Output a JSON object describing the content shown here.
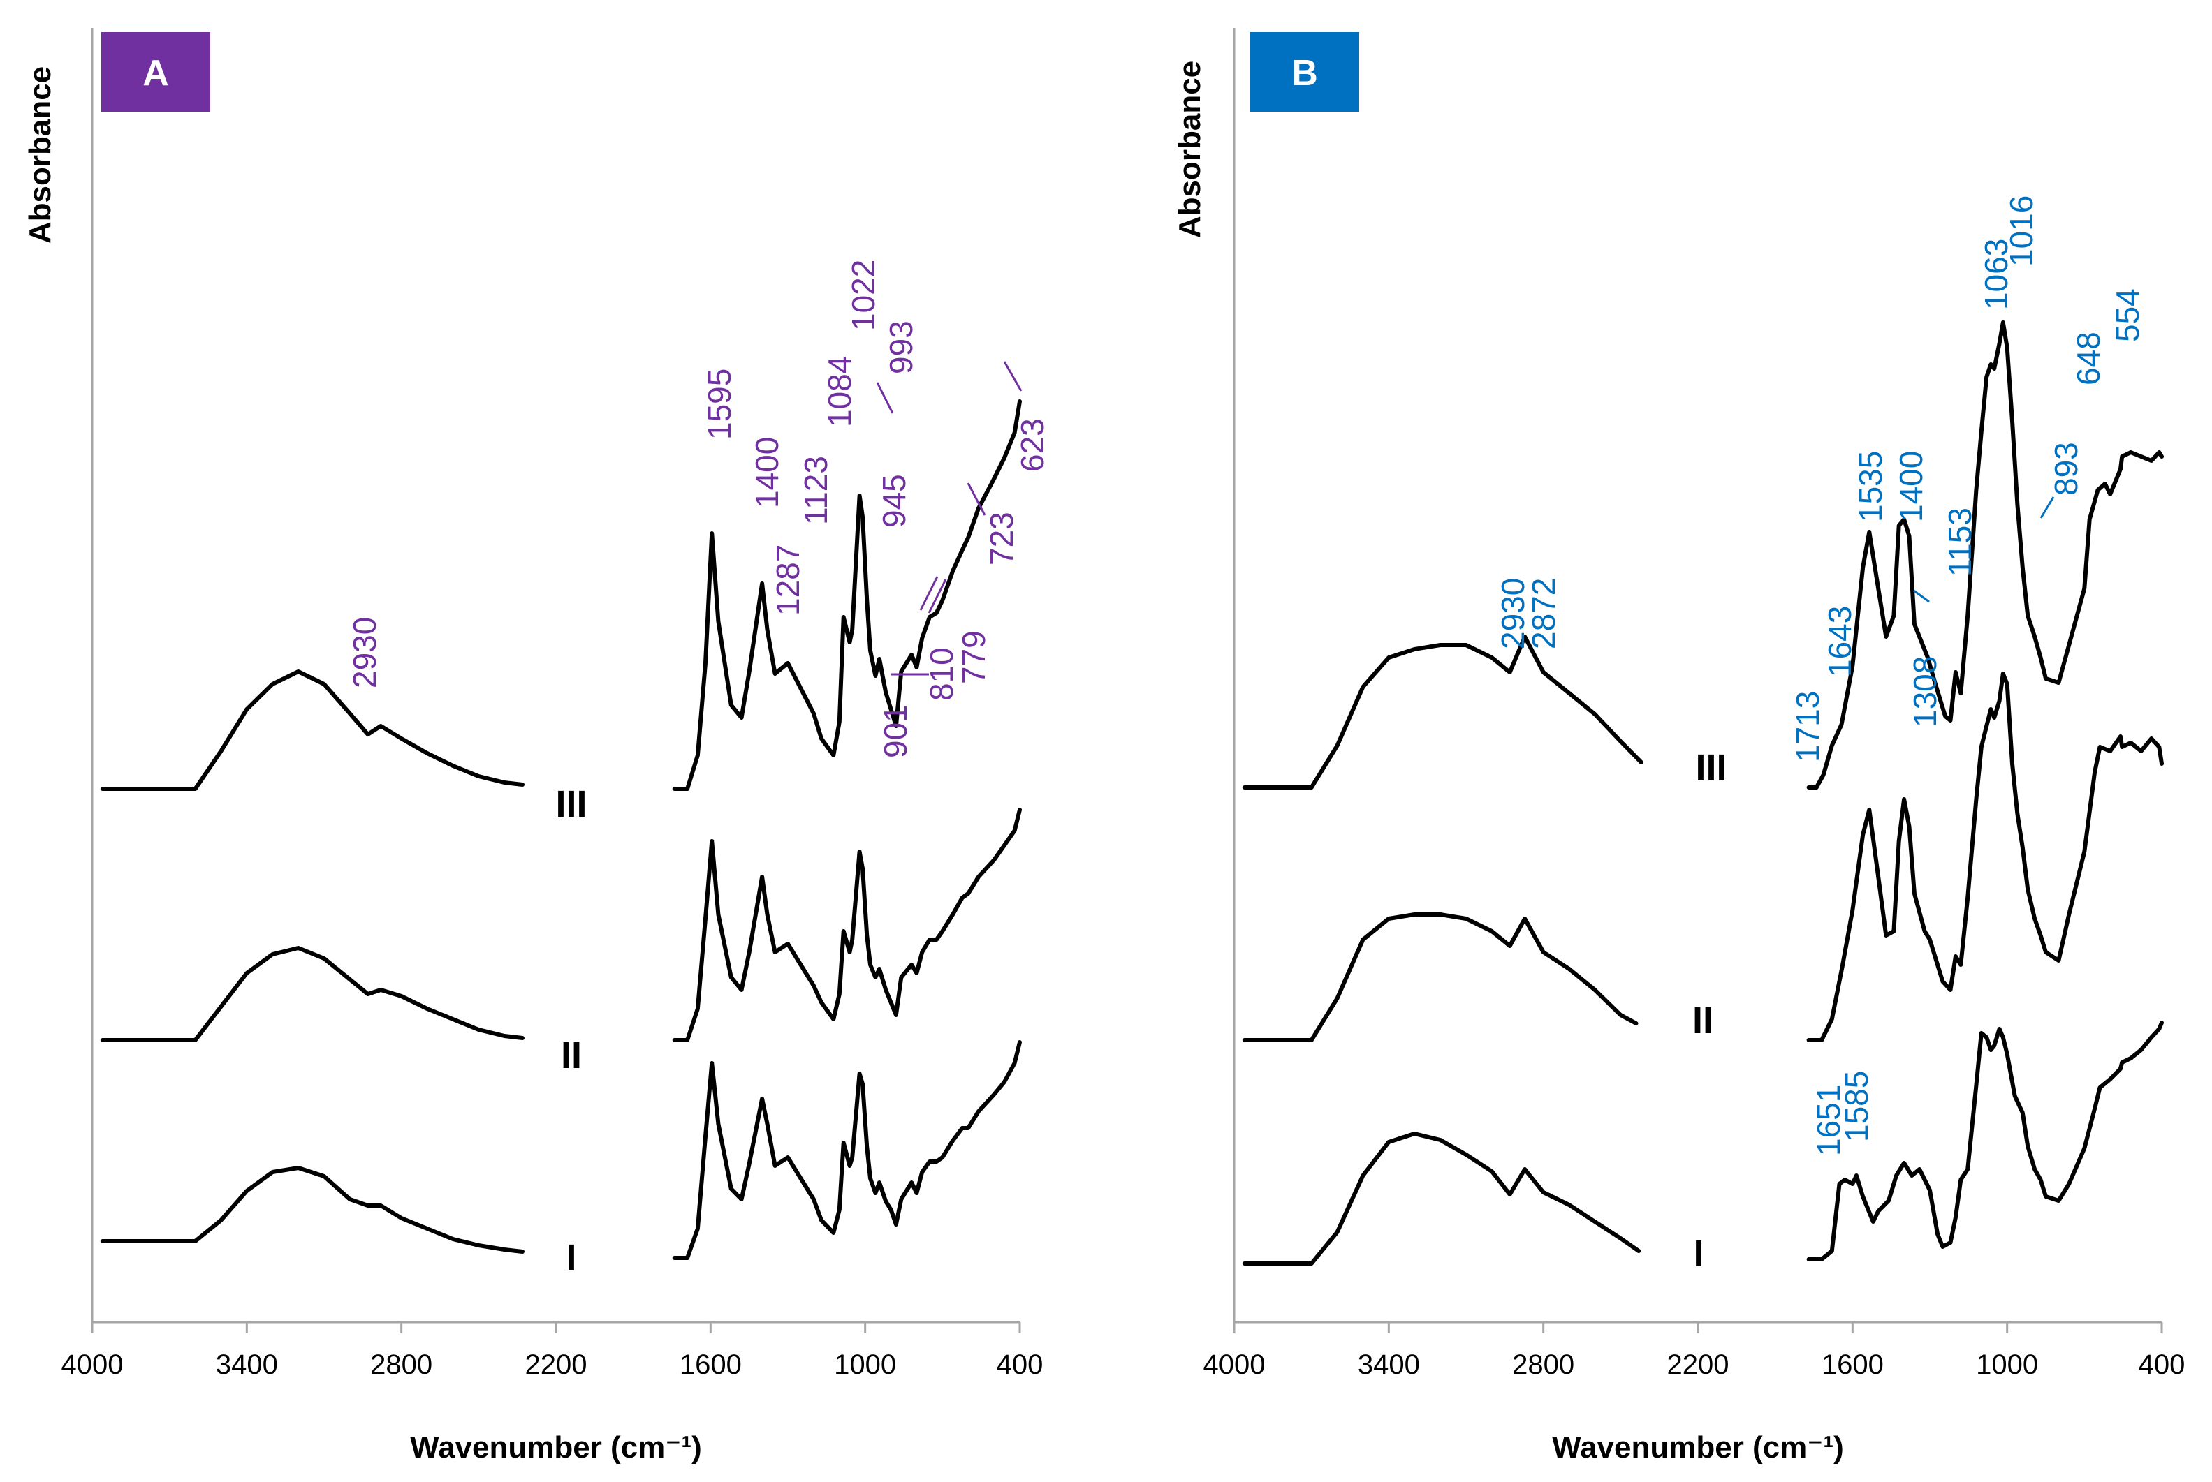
{
  "chart_data": [
    {
      "type": "line",
      "panel_label": "A",
      "accent": "#7030a0",
      "ylabel": "Absorbance",
      "xlabel": "Wavenumber (cm⁻¹)",
      "xlim": [
        4000,
        400
      ],
      "x_ticks": [
        "4000",
        "3400",
        "2800",
        "2200",
        "1600",
        "1000",
        "400"
      ],
      "x_tick_values": [
        4000,
        3400,
        2800,
        2200,
        1600,
        1000,
        400
      ],
      "axis_break": [
        2300,
        1700
      ],
      "series": [
        {
          "name": "I",
          "segments": [
            {
              "x": [
                3960,
                3600,
                3500,
                3400,
                3300,
                3200,
                3100,
                3000,
                2930,
                2880,
                2800,
                2700,
                2600,
                2500,
                2400,
                2330
              ],
              "y": [
                0.1,
                0.1,
                0.2,
                0.34,
                0.43,
                0.45,
                0.41,
                0.3,
                0.27,
                0.27,
                0.21,
                0.16,
                0.11,
                0.08,
                0.06,
                0.05
              ]
            },
            {
              "x": [
                1740,
                1690,
                1650,
                1620,
                1595,
                1570,
                1520,
                1480,
                1450,
                1400,
                1380,
                1350,
                1300,
                1250,
                1200,
                1170,
                1123,
                1100,
                1084,
                1060,
                1050,
                1022,
                1010,
                993,
                980,
                960,
                945,
                920,
                900,
                880,
                860,
                820,
                800,
                779,
                750,
                723,
                700,
                660,
                623,
                600,
                560,
                500,
                460,
                420,
                400
              ],
              "y": [
                0.02,
                0.02,
                0.16,
                0.6,
                0.95,
                0.66,
                0.35,
                0.3,
                0.47,
                0.78,
                0.66,
                0.46,
                0.5,
                0.4,
                0.3,
                0.2,
                0.14,
                0.25,
                0.57,
                0.46,
                0.5,
                0.9,
                0.85,
                0.55,
                0.4,
                0.33,
                0.38,
                0.29,
                0.25,
                0.18,
                0.3,
                0.38,
                0.33,
                0.43,
                0.48,
                0.48,
                0.5,
                0.58,
                0.64,
                0.64,
                0.72,
                0.8,
                0.86,
                0.95,
                1.05
              ]
            }
          ]
        },
        {
          "name": "II",
          "segments": [
            {
              "x": [
                3960,
                3600,
                3500,
                3400,
                3300,
                3200,
                3100,
                3000,
                2930,
                2880,
                2800,
                2700,
                2600,
                2500,
                2400,
                2330
              ],
              "y": [
                0.0,
                0.0,
                0.16,
                0.32,
                0.41,
                0.44,
                0.39,
                0.29,
                0.22,
                0.24,
                0.21,
                0.15,
                0.1,
                0.05,
                0.02,
                0.01
              ]
            },
            {
              "x": [
                1740,
                1690,
                1650,
                1620,
                1595,
                1570,
                1520,
                1480,
                1450,
                1400,
                1380,
                1350,
                1300,
                1250,
                1200,
                1170,
                1123,
                1100,
                1084,
                1060,
                1050,
                1022,
                1010,
                993,
                980,
                960,
                945,
                920,
                900,
                880,
                860,
                820,
                800,
                779,
                750,
                723,
                700,
                660,
                623,
                600,
                560,
                500,
                460,
                420,
                400
              ],
              "y": [
                0.0,
                0.0,
                0.15,
                0.58,
                0.95,
                0.6,
                0.3,
                0.24,
                0.42,
                0.78,
                0.6,
                0.42,
                0.46,
                0.36,
                0.26,
                0.18,
                0.1,
                0.22,
                0.52,
                0.42,
                0.48,
                0.9,
                0.82,
                0.5,
                0.36,
                0.3,
                0.34,
                0.24,
                0.18,
                0.12,
                0.3,
                0.36,
                0.32,
                0.42,
                0.48,
                0.48,
                0.52,
                0.6,
                0.68,
                0.7,
                0.78,
                0.86,
                0.93,
                1.0,
                1.1
              ]
            }
          ]
        },
        {
          "name": "III",
          "segments": [
            {
              "x": [
                3960,
                3600,
                3500,
                3400,
                3300,
                3200,
                3100,
                3000,
                2930,
                2880,
                2800,
                2700,
                2600,
                2500,
                2400,
                2330
              ],
              "y": [
                0.0,
                0.0,
                0.18,
                0.38,
                0.5,
                0.56,
                0.5,
                0.36,
                0.26,
                0.3,
                0.24,
                0.17,
                0.11,
                0.06,
                0.03,
                0.02
              ]
            },
            {
              "x": [
                1740,
                1690,
                1650,
                1620,
                1595,
                1570,
                1520,
                1480,
                1450,
                1400,
                1380,
                1350,
                1300,
                1250,
                1200,
                1170,
                1123,
                1100,
                1084,
                1060,
                1050,
                1022,
                1010,
                993,
                980,
                960,
                945,
                920,
                900,
                880,
                860,
                820,
                800,
                779,
                750,
                723,
                700,
                660,
                623,
                600,
                560,
                500,
                460,
                420,
                400
              ],
              "y": [
                0.0,
                0.0,
                0.16,
                0.6,
                1.22,
                0.8,
                0.4,
                0.34,
                0.56,
                0.98,
                0.76,
                0.55,
                0.6,
                0.48,
                0.36,
                0.24,
                0.16,
                0.32,
                0.82,
                0.7,
                0.76,
                1.4,
                1.3,
                0.9,
                0.66,
                0.54,
                0.62,
                0.46,
                0.38,
                0.3,
                0.56,
                0.64,
                0.58,
                0.72,
                0.82,
                0.84,
                0.9,
                1.04,
                1.14,
                1.2,
                1.34,
                1.48,
                1.58,
                1.7,
                1.85
              ]
            }
          ]
        }
      ],
      "annotations": [
        "2930",
        "1595",
        "1400",
        "1287",
        "1123",
        "1084",
        "1022",
        "993",
        "945",
        "901",
        "810",
        "779",
        "723",
        "623"
      ]
    },
    {
      "type": "line",
      "panel_label": "B",
      "accent": "#0070c0",
      "ylabel": "Absorbance",
      "xlabel": "Wavenumber (cm⁻¹)",
      "xlim": [
        4000,
        400
      ],
      "x_ticks": [
        "4000",
        "3400",
        "2800",
        "2200",
        "1600",
        "1000",
        "400"
      ],
      "x_tick_values": [
        4000,
        3400,
        2800,
        2200,
        1600,
        1000,
        400
      ],
      "axis_break": [
        2400,
        1800
      ],
      "series": [
        {
          "name": "I",
          "segments": [
            {
              "x": [
                3960,
                3700,
                3600,
                3500,
                3400,
                3300,
                3200,
                3100,
                3000,
                2930,
                2872,
                2800,
                2700,
                2600,
                2500,
                2430
              ],
              "y": [
                0.0,
                0.0,
                0.15,
                0.42,
                0.58,
                0.62,
                0.59,
                0.52,
                0.44,
                0.33,
                0.45,
                0.34,
                0.28,
                0.2,
                0.12,
                0.06
              ]
            },
            {
              "x": [
                1770,
                1720,
                1680,
                1651,
                1630,
                1600,
                1585,
                1560,
                1520,
                1500,
                1460,
                1430,
                1400,
                1370,
                1340,
                1300,
                1270,
                1250,
                1220,
                1200,
                1180,
                1153,
                1120,
                1100,
                1080,
                1063,
                1050,
                1030,
                1016,
                1000,
                970,
                940,
                920,
                893,
                870,
                850,
                800,
                760,
                700,
                660,
                640,
                600,
                560,
                554,
                520,
                480,
                440,
                410,
                400
              ],
              "y": [
                0.02,
                0.02,
                0.06,
                0.38,
                0.4,
                0.38,
                0.42,
                0.32,
                0.2,
                0.25,
                0.3,
                0.42,
                0.48,
                0.42,
                0.45,
                0.35,
                0.14,
                0.08,
                0.1,
                0.22,
                0.4,
                0.45,
                0.85,
                1.1,
                1.08,
                1.02,
                1.04,
                1.12,
                1.08,
                1.0,
                0.8,
                0.72,
                0.56,
                0.45,
                0.4,
                0.32,
                0.3,
                0.38,
                0.55,
                0.74,
                0.84,
                0.88,
                0.93,
                0.96,
                0.98,
                1.02,
                1.08,
                1.12,
                1.15
              ]
            }
          ]
        },
        {
          "name": "II",
          "segments": [
            {
              "x": [
                3960,
                3700,
                3600,
                3500,
                3400,
                3300,
                3200,
                3100,
                3000,
                2930,
                2872,
                2800,
                2700,
                2600,
                2500,
                2440
              ],
              "y": [
                0.0,
                0.0,
                0.2,
                0.48,
                0.58,
                0.6,
                0.6,
                0.58,
                0.52,
                0.45,
                0.58,
                0.42,
                0.34,
                0.24,
                0.12,
                0.08
              ]
            },
            {
              "x": [
                1770,
                1720,
                1680,
                1640,
                1600,
                1560,
                1535,
                1500,
                1470,
                1440,
                1420,
                1400,
                1380,
                1360,
                1320,
                1300,
                1250,
                1220,
                1200,
                1180,
                1153,
                1120,
                1100,
                1080,
                1063,
                1050,
                1030,
                1016,
                1000,
                980,
                960,
                940,
                920,
                893,
                870,
                850,
                800,
                760,
                700,
                660,
                640,
                600,
                560,
                554,
                520,
                480,
                440,
                410,
                400
              ],
              "y": [
                0.0,
                0.0,
                0.1,
                0.35,
                0.62,
                0.98,
                1.1,
                0.78,
                0.5,
                0.52,
                0.95,
                1.15,
                1.02,
                0.7,
                0.52,
                0.48,
                0.28,
                0.24,
                0.4,
                0.36,
                0.68,
                1.15,
                1.4,
                1.5,
                1.58,
                1.54,
                1.62,
                1.75,
                1.7,
                1.32,
                1.08,
                0.92,
                0.72,
                0.58,
                0.5,
                0.42,
                0.38,
                0.6,
                0.9,
                1.28,
                1.4,
                1.38,
                1.45,
                1.4,
                1.42,
                1.38,
                1.44,
                1.4,
                1.32
              ]
            }
          ]
        },
        {
          "name": "III",
          "segments": [
            {
              "x": [
                3960,
                3700,
                3600,
                3500,
                3400,
                3300,
                3200,
                3100,
                3000,
                2930,
                2872,
                2800,
                2700,
                2600,
                2500,
                2420
              ],
              "y": [
                0.0,
                0.0,
                0.2,
                0.48,
                0.62,
                0.66,
                0.68,
                0.68,
                0.62,
                0.55,
                0.72,
                0.55,
                0.45,
                0.35,
                0.22,
                0.12
              ]
            },
            {
              "x": [
                1770,
                1740,
                1713,
                1680,
                1643,
                1600,
                1560,
                1535,
                1500,
                1470,
                1440,
                1420,
                1400,
                1380,
                1360,
                1308,
                1280,
                1240,
                1220,
                1200,
                1180,
                1153,
                1120,
                1100,
                1080,
                1063,
                1050,
                1030,
                1016,
                1000,
                980,
                960,
                940,
                920,
                893,
                870,
                850,
                800,
                760,
                700,
                680,
                648,
                620,
                600,
                560,
                554,
                520,
                480,
                440,
                410,
                400
              ],
              "y": [
                0.0,
                0.0,
                0.06,
                0.2,
                0.3,
                0.58,
                1.05,
                1.22,
                0.95,
                0.72,
                0.82,
                1.25,
                1.28,
                1.2,
                0.78,
                0.62,
                0.5,
                0.34,
                0.32,
                0.55,
                0.45,
                0.82,
                1.42,
                1.7,
                1.96,
                2.02,
                2.0,
                2.12,
                2.22,
                2.1,
                1.75,
                1.35,
                1.05,
                0.82,
                0.72,
                0.62,
                0.52,
                0.5,
                0.68,
                0.95,
                1.28,
                1.42,
                1.45,
                1.4,
                1.52,
                1.58,
                1.6,
                1.58,
                1.56,
                1.6,
                1.58
              ]
            }
          ]
        }
      ],
      "annotations": [
        "2930",
        "2872",
        "1713",
        "1643",
        "1535",
        "1400",
        "1308",
        "1153",
        "1063",
        "1016",
        "893",
        "648",
        "554",
        "1651",
        "1585"
      ]
    }
  ]
}
